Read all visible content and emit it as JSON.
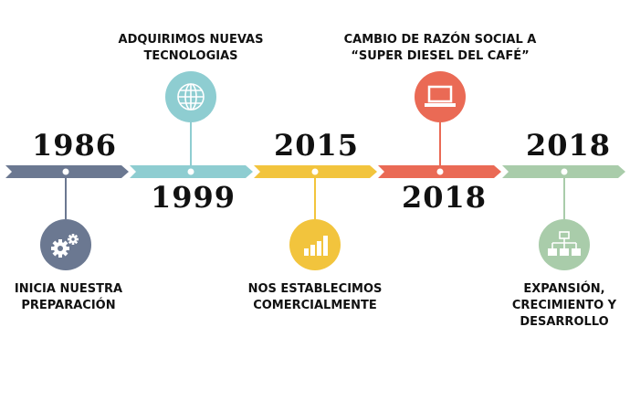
{
  "colors": {
    "slate": "#6b7891",
    "teal": "#8ecdd1",
    "yellow": "#f2c43d",
    "coral": "#ea6a55",
    "green": "#a9ccaa"
  },
  "milestones": [
    {
      "year": "1986",
      "caption": [
        "INICIA NUESTRA",
        "PREPARACIÓN"
      ],
      "icon": "gears-icon",
      "color": "slate"
    },
    {
      "year": "1999",
      "caption": [
        "ADQUIRIMOS NUEVAS",
        "TECNOLOGIAS"
      ],
      "icon": "globe-icon",
      "color": "teal"
    },
    {
      "year": "2015",
      "caption": [
        "NOS ESTABLECIMOS",
        "COMERCIALMENTE"
      ],
      "icon": "bar-chart-icon",
      "color": "yellow"
    },
    {
      "year": "2018",
      "caption": [
        "CAMBIO DE RAZÓN SOCIAL A",
        "“SUPER DIESEL DEL CAFÉ”"
      ],
      "icon": "laptop-icon",
      "color": "coral"
    },
    {
      "year": "2018",
      "caption": [
        "EXPANSIÓN,",
        "CRECIMIENTO Y",
        "DESARROLLO"
      ],
      "icon": "sitemap-icon",
      "color": "green"
    }
  ]
}
